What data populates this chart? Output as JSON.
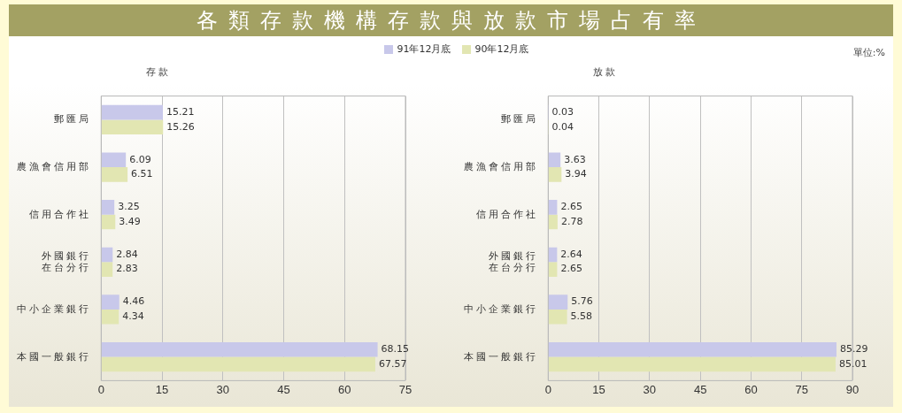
{
  "chart_data": [
    {
      "type": "bar",
      "orientation": "horizontal",
      "title": "各類存款機構存款與放款市場占有率",
      "subtitle": "存 款",
      "categories": [
        "郵匯局",
        "農漁會信用部",
        "信用合作社",
        "外國銀行在台分行",
        "中小企業銀行",
        "本國一般銀行"
      ],
      "series": [
        {
          "name": "91年12月底",
          "color": "#c8c8ea",
          "values": [
            15.21,
            6.09,
            3.25,
            2.84,
            4.46,
            68.15
          ]
        },
        {
          "name": "90年12月底",
          "color": "#e2e6b2",
          "values": [
            15.26,
            6.51,
            3.49,
            2.83,
            4.34,
            67.57
          ]
        }
      ],
      "xlim": [
        0,
        75
      ],
      "xticks": [
        0,
        15,
        30,
        45,
        60,
        75
      ],
      "grid": "x",
      "legend": "top",
      "data_labels": true
    },
    {
      "type": "bar",
      "orientation": "horizontal",
      "subtitle": "放 款",
      "annotations": [
        "單位:%"
      ],
      "categories": [
        "郵匯局",
        "農漁會信用部",
        "信用合作社",
        "外國銀行在台分行",
        "中小企業銀行",
        "本國一般銀行"
      ],
      "series": [
        {
          "color": "#c8c8ea",
          "values": [
            0.03,
            3.63,
            2.65,
            2.64,
            5.76,
            85.29
          ]
        },
        {
          "color": "#e2e6b2",
          "values": [
            0.04,
            3.94,
            2.78,
            2.65,
            5.58,
            85.01
          ]
        }
      ],
      "xlim": [
        0,
        90
      ],
      "xticks": [
        0,
        15,
        30,
        45,
        60,
        75,
        90
      ],
      "grid": "x",
      "data_labels": true
    }
  ]
}
